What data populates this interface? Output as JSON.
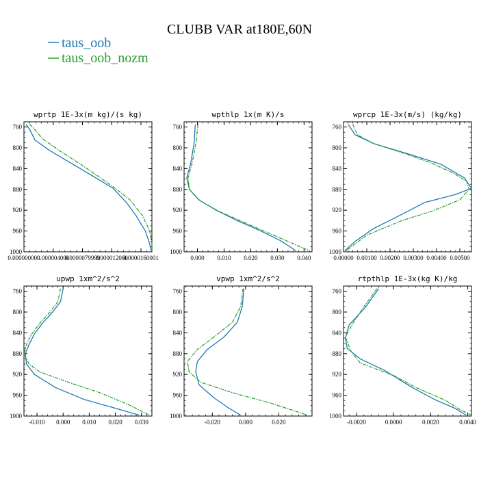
{
  "title": "CLUBB VAR at180E,60N",
  "legend": [
    {
      "label": "taus_oob",
      "color": "#1f77b4"
    },
    {
      "label": "taus_oob_nozm",
      "color": "#2ca02c"
    }
  ],
  "chart_data": [
    {
      "type": "line",
      "title": "wprtp   1E-3x(m kg)/(s kg)",
      "ylim": [
        1000,
        750
      ],
      "yticks": [
        760,
        800,
        840,
        880,
        920,
        960,
        1000
      ],
      "xlim": [
        0,
        1.75e-05
      ],
      "xticks": [
        0,
        4e-06,
        8e-06,
        1.2e-05,
        1.6e-05
      ],
      "xtick_labels": [
        "0.000000000",
        "0.000004000",
        "0.0000079999",
        "0.000012000",
        "0.0000160001"
      ],
      "series": [
        {
          "name": "taus_oob",
          "color": "#1f77b4",
          "dashed": false,
          "points": [
            [
              3e-07,
              755
            ],
            [
              8e-07,
              765
            ],
            [
              1.5e-06,
              785
            ],
            [
              3.5e-06,
              805
            ],
            [
              6.5e-06,
              830
            ],
            [
              9.5e-06,
              855
            ],
            [
              1.22e-05,
              878
            ],
            [
              1.4e-05,
              905
            ],
            [
              1.53e-05,
              930
            ],
            [
              1.66e-05,
              960
            ],
            [
              1.72e-05,
              985
            ],
            [
              1.74e-05,
              998
            ]
          ]
        },
        {
          "name": "taus_oob_nozm",
          "color": "#2ca02c",
          "dashed": true,
          "points": [
            [
              8e-07,
              755
            ],
            [
              1.5e-06,
              765
            ],
            [
              2.5e-06,
              782
            ],
            [
              4.8e-06,
              805
            ],
            [
              7.8e-06,
              832
            ],
            [
              1.05e-05,
              858
            ],
            [
              1.25e-05,
              878
            ],
            [
              1.45e-05,
              900
            ],
            [
              1.62e-05,
              930
            ],
            [
              1.72e-05,
              960
            ],
            [
              1.75e-05,
              985
            ],
            [
              1.75e-05,
              998
            ]
          ]
        }
      ]
    },
    {
      "type": "line",
      "title": "wpthlp   1x(m K)/s",
      "ylim": [
        1000,
        750
      ],
      "yticks": [
        760,
        800,
        840,
        880,
        920,
        960,
        1000
      ],
      "xlim": [
        -0.005,
        0.043
      ],
      "xticks": [
        0,
        0.01,
        0.02,
        0.03,
        0.04
      ],
      "xtick_labels": [
        "0.000",
        "0.010",
        "0.020",
        "0.030",
        "0.040"
      ],
      "series": [
        {
          "name": "taus_oob",
          "color": "#1f77b4",
          "dashed": false,
          "points": [
            [
              -0.0008,
              755
            ],
            [
              -0.0012,
              790
            ],
            [
              -0.0025,
              830
            ],
            [
              -0.004,
              858
            ],
            [
              -0.003,
              880
            ],
            [
              0.0005,
              900
            ],
            [
              0.007,
              920
            ],
            [
              0.015,
              940
            ],
            [
              0.023,
              958
            ],
            [
              0.031,
              978
            ],
            [
              0.037,
              998
            ]
          ]
        },
        {
          "name": "taus_oob_nozm",
          "color": "#2ca02c",
          "dashed": true,
          "points": [
            [
              0.0002,
              755
            ],
            [
              -0.0005,
              790
            ],
            [
              -0.002,
              830
            ],
            [
              -0.0035,
              858
            ],
            [
              -0.003,
              880
            ],
            [
              0.001,
              902
            ],
            [
              0.008,
              922
            ],
            [
              0.016,
              940
            ],
            [
              0.025,
              960
            ],
            [
              0.034,
              980
            ],
            [
              0.042,
              998
            ]
          ]
        }
      ]
    },
    {
      "type": "line",
      "title": "wprcp   1E-3x(m/s) (kg/kg)",
      "ylim": [
        1000,
        750
      ],
      "yticks": [
        760,
        800,
        840,
        880,
        920,
        960,
        1000
      ],
      "xlim": [
        0,
        0.0055
      ],
      "xticks": [
        0,
        0.001,
        0.002,
        0.003,
        0.004,
        0.005
      ],
      "xtick_labels": [
        "0.00000",
        "0.00100",
        "0.00200",
        "0.00300",
        "0.00400",
        "0.00500"
      ],
      "series": [
        {
          "name": "taus_oob",
          "color": "#1f77b4",
          "dashed": false,
          "points": [
            [
              0.0002,
              755
            ],
            [
              0.0005,
              775
            ],
            [
              0.0013,
              792
            ],
            [
              0.0028,
              812
            ],
            [
              0.0042,
              832
            ],
            [
              0.0052,
              858
            ],
            [
              0.0055,
              878
            ],
            [
              0.0048,
              890
            ],
            [
              0.0035,
              905
            ],
            [
              0.0022,
              935
            ],
            [
              0.0013,
              955
            ],
            [
              0.0005,
              980
            ],
            [
              5e-05,
              998
            ]
          ]
        },
        {
          "name": "taus_oob_nozm",
          "color": "#2ca02c",
          "dashed": true,
          "points": [
            [
              0.0004,
              755
            ],
            [
              0.0006,
              775
            ],
            [
              0.0013,
              792
            ],
            [
              0.0027,
              812
            ],
            [
              0.0038,
              830
            ],
            [
              0.0047,
              848
            ],
            [
              0.0053,
              865
            ],
            [
              0.0054,
              880
            ],
            [
              0.005,
              900
            ],
            [
              0.0038,
              922
            ],
            [
              0.0025,
              940
            ],
            [
              0.001,
              968
            ],
            [
              0.0001,
              998
            ]
          ]
        }
      ]
    },
    {
      "type": "line",
      "title": "upwp   1xm^2/s^2",
      "ylim": [
        1000,
        750
      ],
      "yticks": [
        760,
        800,
        840,
        880,
        920,
        960,
        1000
      ],
      "xlim": [
        -0.015,
        0.034
      ],
      "xticks": [
        -0.01,
        0,
        0.01,
        0.02,
        0.03
      ],
      "xtick_labels": [
        "-0.010",
        "0.000",
        "0.010",
        "0.020",
        "0.030"
      ],
      "series": [
        {
          "name": "taus_oob",
          "color": "#1f77b4",
          "dashed": false,
          "points": [
            [
              0,
              755
            ],
            [
              -0.001,
              780
            ],
            [
              -0.004,
              800
            ],
            [
              -0.008,
              822
            ],
            [
              -0.011,
              842
            ],
            [
              -0.013,
              862
            ],
            [
              -0.0145,
              880
            ],
            [
              -0.014,
              900
            ],
            [
              -0.011,
              920
            ],
            [
              -0.003,
              945
            ],
            [
              0.008,
              968
            ],
            [
              0.02,
              985
            ],
            [
              0.029,
              998
            ]
          ]
        },
        {
          "name": "taus_oob_nozm",
          "color": "#2ca02c",
          "dashed": true,
          "points": [
            [
              -0.001,
              755
            ],
            [
              -0.002,
              780
            ],
            [
              -0.005,
              800
            ],
            [
              -0.009,
              822
            ],
            [
              -0.012,
              842
            ],
            [
              -0.014,
              862
            ],
            [
              -0.015,
              880
            ],
            [
              -0.013,
              900
            ],
            [
              -0.009,
              915
            ],
            [
              0.002,
              935
            ],
            [
              0.014,
              955
            ],
            [
              0.025,
              978
            ],
            [
              0.033,
              998
            ]
          ]
        }
      ]
    },
    {
      "type": "line",
      "title": "vpwp   1xm^2/s^2",
      "ylim": [
        1000,
        750
      ],
      "yticks": [
        760,
        800,
        840,
        880,
        920,
        960,
        1000
      ],
      "xlim": [
        -0.037,
        0.04
      ],
      "xticks": [
        -0.02,
        0,
        0.02
      ],
      "xtick_labels": [
        "-0.020",
        "0.000",
        "0.020"
      ],
      "series": [
        {
          "name": "taus_oob",
          "color": "#1f77b4",
          "dashed": false,
          "points": [
            [
              -0.001,
              755
            ],
            [
              -0.002,
              790
            ],
            [
              -0.005,
              820
            ],
            [
              -0.013,
              848
            ],
            [
              -0.023,
              872
            ],
            [
              -0.029,
              895
            ],
            [
              -0.03,
              915
            ],
            [
              -0.028,
              940
            ],
            [
              -0.019,
              965
            ],
            [
              -0.01,
              985
            ],
            [
              -0.003,
              998
            ]
          ]
        },
        {
          "name": "taus_oob_nozm",
          "color": "#2ca02c",
          "dashed": true,
          "points": [
            [
              -0.0015,
              755
            ],
            [
              -0.003,
              790
            ],
            [
              -0.008,
              820
            ],
            [
              -0.019,
              848
            ],
            [
              -0.029,
              872
            ],
            [
              -0.035,
              895
            ],
            [
              -0.034,
              915
            ],
            [
              -0.027,
              935
            ],
            [
              -0.008,
              955
            ],
            [
              0.015,
              975
            ],
            [
              0.037,
              998
            ]
          ]
        }
      ]
    },
    {
      "type": "line",
      "title": "rtpthlp   1E-3x(kg K)/kg",
      "ylim": [
        1000,
        750
      ],
      "yticks": [
        760,
        800,
        840,
        880,
        920,
        960,
        1000
      ],
      "xlim": [
        -0.0027,
        0.0042
      ],
      "xticks": [
        -0.002,
        0,
        0.002,
        0.004
      ],
      "xtick_labels": [
        "-0.0020",
        "0.0000",
        "0.0020",
        "0.0040"
      ],
      "series": [
        {
          "name": "taus_oob",
          "color": "#1f77b4",
          "dashed": false,
          "points": [
            [
              -0.0008,
              755
            ],
            [
              -0.0015,
              790
            ],
            [
              -0.0024,
              825
            ],
            [
              -0.0026,
              850
            ],
            [
              -0.0025,
              870
            ],
            [
              -0.0018,
              890
            ],
            [
              -0.0005,
              912
            ],
            [
              0.001,
              945
            ],
            [
              0.0022,
              968
            ],
            [
              0.0033,
              985
            ],
            [
              0.0039,
              998
            ]
          ]
        },
        {
          "name": "taus_oob_nozm",
          "color": "#2ca02c",
          "dashed": true,
          "points": [
            [
              -0.0009,
              755
            ],
            [
              -0.0016,
              790
            ],
            [
              -0.0022,
              822
            ],
            [
              -0.0026,
              848
            ],
            [
              -0.0023,
              875
            ],
            [
              -0.0018,
              898
            ],
            [
              0,
              922
            ],
            [
              0.0012,
              945
            ],
            [
              0.0028,
              970
            ],
            [
              0.0036,
              988
            ],
            [
              0.0042,
              998
            ]
          ]
        }
      ]
    }
  ]
}
